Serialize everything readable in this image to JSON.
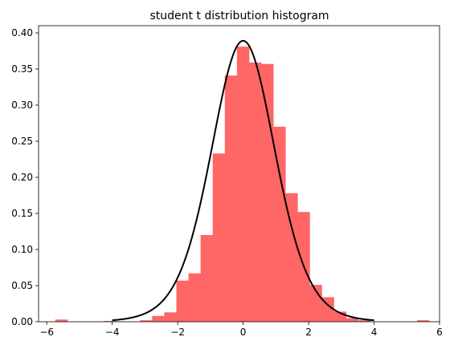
{
  "chart_data": {
    "type": "bar",
    "title": "student t distribution histogram",
    "xlabel": "",
    "ylabel": "",
    "xlim": [
      -6.25,
      6.0
    ],
    "ylim": [
      0,
      0.41
    ],
    "x_ticks": [
      -6,
      -4,
      -2,
      0,
      2,
      4,
      6
    ],
    "y_ticks": [
      0.0,
      0.05,
      0.1,
      0.15,
      0.2,
      0.25,
      0.3,
      0.35,
      0.4
    ],
    "x_tick_labels": [
      "−6",
      "−4",
      "−2",
      "0",
      "2",
      "4",
      "6"
    ],
    "y_tick_labels": [
      "0.00",
      "0.05",
      "0.10",
      "0.15",
      "0.20",
      "0.25",
      "0.30",
      "0.35",
      "0.40"
    ],
    "grid": false,
    "histogram": {
      "color": "#ff6666",
      "bin_width": 0.37,
      "bins": [
        {
          "x0": -5.74,
          "height": 0.003
        },
        {
          "x0": -4.26,
          "height": 0.001
        },
        {
          "x0": -3.15,
          "height": 0.002
        },
        {
          "x0": -2.78,
          "height": 0.008
        },
        {
          "x0": -2.41,
          "height": 0.013
        },
        {
          "x0": -2.04,
          "height": 0.057
        },
        {
          "x0": -1.67,
          "height": 0.067
        },
        {
          "x0": -1.3,
          "height": 0.12
        },
        {
          "x0": -0.93,
          "height": 0.233
        },
        {
          "x0": -0.56,
          "height": 0.341
        },
        {
          "x0": -0.19,
          "height": 0.381
        },
        {
          "x0": 0.18,
          "height": 0.359
        },
        {
          "x0": 0.55,
          "height": 0.357
        },
        {
          "x0": 0.92,
          "height": 0.27
        },
        {
          "x0": 1.29,
          "height": 0.178
        },
        {
          "x0": 1.66,
          "height": 0.152
        },
        {
          "x0": 2.03,
          "height": 0.051
        },
        {
          "x0": 2.4,
          "height": 0.034
        },
        {
          "x0": 2.77,
          "height": 0.014
        },
        {
          "x0": 3.14,
          "height": 0.005
        },
        {
          "x0": 3.51,
          "height": 0.002
        },
        {
          "x0": 5.31,
          "height": 0.002
        }
      ]
    },
    "pdf_curve": {
      "color": "#000000",
      "distribution": "student-t",
      "df": 10,
      "x_range": [
        -4,
        4
      ]
    }
  }
}
